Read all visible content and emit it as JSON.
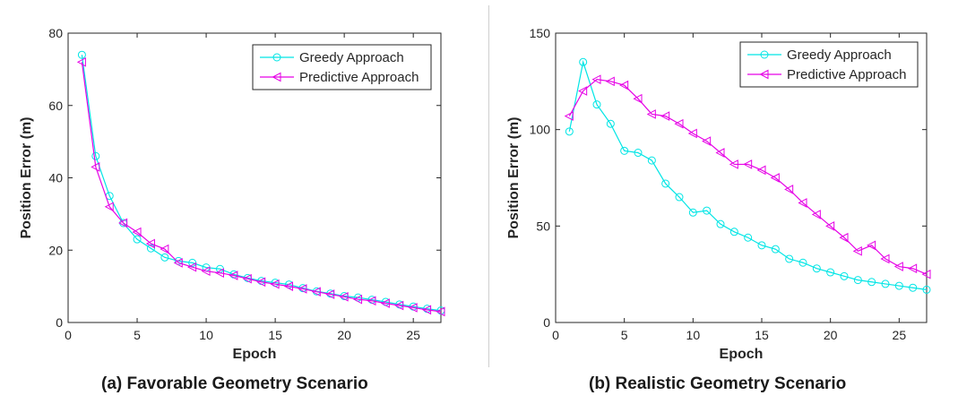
{
  "captions": {
    "a": "(a) Favorable Geometry Scenario",
    "b": "(b) Realistic Geometry Scenario"
  },
  "colors": {
    "greedy": "#00e5e5",
    "predictive": "#e600e6",
    "axis": "#262626"
  },
  "chart_data": [
    {
      "type": "line",
      "title": "",
      "xlabel": "Epoch",
      "ylabel": "Position Error (m)",
      "xlim": [
        0,
        27
      ],
      "ylim": [
        0,
        80
      ],
      "xticks": [
        0,
        5,
        10,
        15,
        20,
        25
      ],
      "yticks": [
        0,
        20,
        40,
        60,
        80
      ],
      "grid": false,
      "legend": "top-right",
      "x": [
        1,
        2,
        3,
        4,
        5,
        6,
        7,
        8,
        9,
        10,
        11,
        12,
        13,
        14,
        15,
        16,
        17,
        18,
        19,
        20,
        21,
        22,
        23,
        24,
        25,
        26,
        27
      ],
      "series": [
        {
          "name": "Greedy Approach",
          "marker": "circle",
          "values": [
            74,
            46,
            35,
            27.5,
            23,
            20.5,
            18,
            17,
            16.5,
            15.2,
            14.8,
            13.3,
            12.3,
            11.5,
            11,
            10.5,
            9.5,
            8.6,
            8,
            7.3,
            6.9,
            6.3,
            5.7,
            5,
            4.4,
            3.8,
            3.3
          ]
        },
        {
          "name": "Predictive Approach",
          "marker": "triangle-left",
          "values": [
            72,
            43,
            32,
            27.5,
            25,
            21.8,
            20.3,
            16.5,
            15.3,
            14.2,
            13.7,
            13,
            12.1,
            11.2,
            10.6,
            10,
            9.3,
            8.5,
            7.8,
            7.1,
            6.4,
            6,
            5.3,
            4.7,
            4.1,
            3.5,
            3
          ]
        }
      ]
    },
    {
      "type": "line",
      "title": "",
      "xlabel": "Epoch",
      "ylabel": "Position Error (m)",
      "xlim": [
        0,
        27
      ],
      "ylim": [
        0,
        150
      ],
      "xticks": [
        0,
        5,
        10,
        15,
        20,
        25
      ],
      "yticks": [
        0,
        50,
        100,
        150
      ],
      "grid": false,
      "legend": "top-right",
      "x": [
        1,
        2,
        3,
        4,
        5,
        6,
        7,
        8,
        9,
        10,
        11,
        12,
        13,
        14,
        15,
        16,
        17,
        18,
        19,
        20,
        21,
        22,
        23,
        24,
        25,
        26,
        27
      ],
      "series": [
        {
          "name": "Greedy Approach",
          "marker": "circle",
          "values": [
            99,
            135,
            113,
            103,
            89,
            88,
            84,
            72,
            65,
            57,
            58,
            51,
            47,
            44,
            40,
            38,
            33,
            31,
            28,
            26,
            24,
            22,
            21,
            20,
            19,
            18,
            17
          ]
        },
        {
          "name": "Predictive Approach",
          "marker": "triangle-left",
          "values": [
            107,
            120,
            126,
            125,
            123,
            116,
            108,
            107,
            103,
            98,
            94,
            88,
            82,
            82,
            79,
            75,
            69,
            62,
            56,
            50,
            44,
            37,
            40,
            33,
            29,
            28,
            25
          ]
        }
      ]
    }
  ]
}
